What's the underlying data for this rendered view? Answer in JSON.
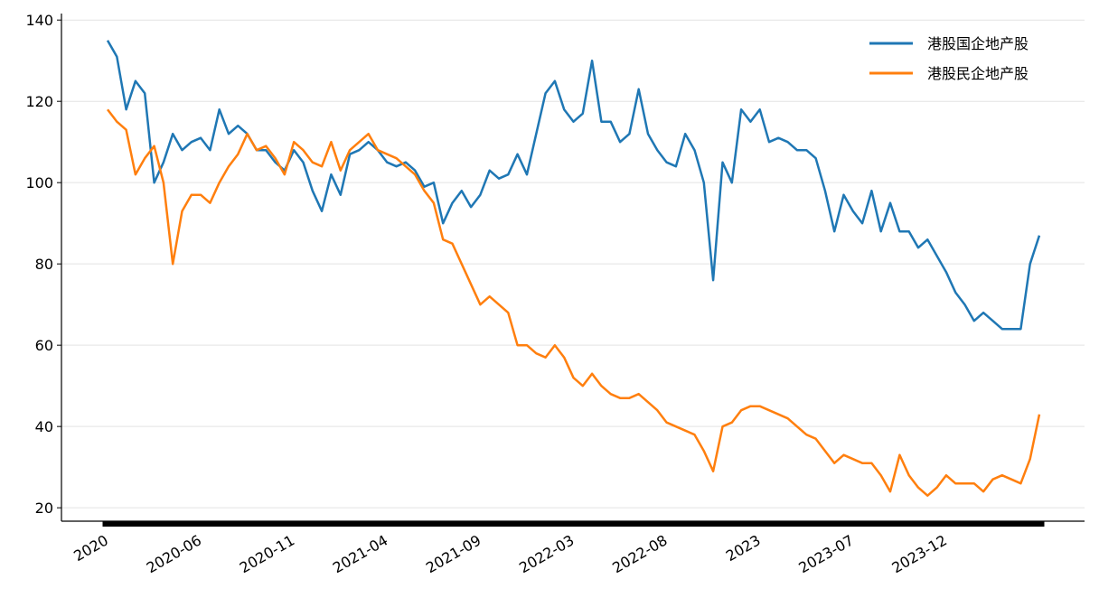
{
  "chart_data": {
    "type": "line",
    "categories": [
      "2020",
      null,
      null,
      null,
      null,
      null,
      null,
      null,
      null,
      null,
      "2020-06",
      null,
      null,
      null,
      null,
      null,
      null,
      null,
      null,
      null,
      "2020-11",
      null,
      null,
      null,
      null,
      null,
      null,
      null,
      null,
      null,
      "2021-04",
      null,
      null,
      null,
      null,
      null,
      null,
      null,
      null,
      null,
      "2021-09",
      null,
      null,
      null,
      null,
      null,
      null,
      null,
      null,
      null,
      "2022-03",
      null,
      null,
      null,
      null,
      null,
      null,
      null,
      null,
      null,
      "2022-08",
      null,
      null,
      null,
      null,
      null,
      null,
      null,
      null,
      null,
      "2023",
      null,
      null,
      null,
      null,
      null,
      null,
      null,
      null,
      null,
      "2023-07",
      null,
      null,
      null,
      null,
      null,
      null,
      null,
      null,
      null,
      "2023-12",
      null,
      null,
      null,
      null,
      null,
      null,
      null,
      null,
      null,
      null
    ],
    "series": [
      {
        "name": "港股国企地产股",
        "color": "#1f77b4",
        "values": [
          135,
          131,
          118,
          125,
          122,
          100,
          105,
          112,
          108,
          110,
          111,
          108,
          118,
          112,
          114,
          112,
          108,
          108,
          105,
          103,
          108,
          105,
          98,
          93,
          102,
          97,
          107,
          108,
          110,
          108,
          105,
          104,
          105,
          103,
          99,
          100,
          90,
          95,
          98,
          94,
          97,
          103,
          101,
          102,
          107,
          102,
          112,
          122,
          125,
          118,
          115,
          117,
          130,
          115,
          115,
          110,
          112,
          123,
          112,
          108,
          105,
          104,
          112,
          108,
          100,
          76,
          105,
          100,
          118,
          115,
          118,
          110,
          111,
          110,
          108,
          108,
          106,
          98,
          88,
          97,
          93,
          90,
          98,
          88,
          95,
          88,
          88,
          84,
          86,
          82,
          78,
          73,
          70,
          66,
          68,
          66,
          64,
          64,
          64,
          80,
          87
        ]
      },
      {
        "name": "港股民企地产股",
        "color": "#ff7f0e",
        "values": [
          118,
          115,
          113,
          102,
          106,
          109,
          100,
          80,
          93,
          97,
          97,
          95,
          100,
          104,
          107,
          112,
          108,
          109,
          106,
          102,
          110,
          108,
          105,
          104,
          110,
          103,
          108,
          110,
          112,
          108,
          107,
          106,
          104,
          102,
          98,
          95,
          86,
          85,
          80,
          75,
          70,
          72,
          70,
          68,
          60,
          60,
          58,
          57,
          60,
          57,
          52,
          50,
          53,
          50,
          48,
          47,
          47,
          48,
          46,
          44,
          41,
          40,
          39,
          38,
          34,
          29,
          40,
          41,
          44,
          45,
          45,
          44,
          43,
          42,
          40,
          38,
          37,
          34,
          31,
          33,
          32,
          31,
          31,
          28,
          24,
          33,
          28,
          25,
          23,
          25,
          28,
          26,
          26,
          26,
          24,
          27,
          28,
          27,
          26,
          32,
          43
        ]
      }
    ],
    "ylim": [
      16.7,
      141.6
    ],
    "yticks": [
      20,
      40,
      60,
      80,
      100,
      120,
      140
    ],
    "grid": true,
    "legend": "upper right"
  }
}
